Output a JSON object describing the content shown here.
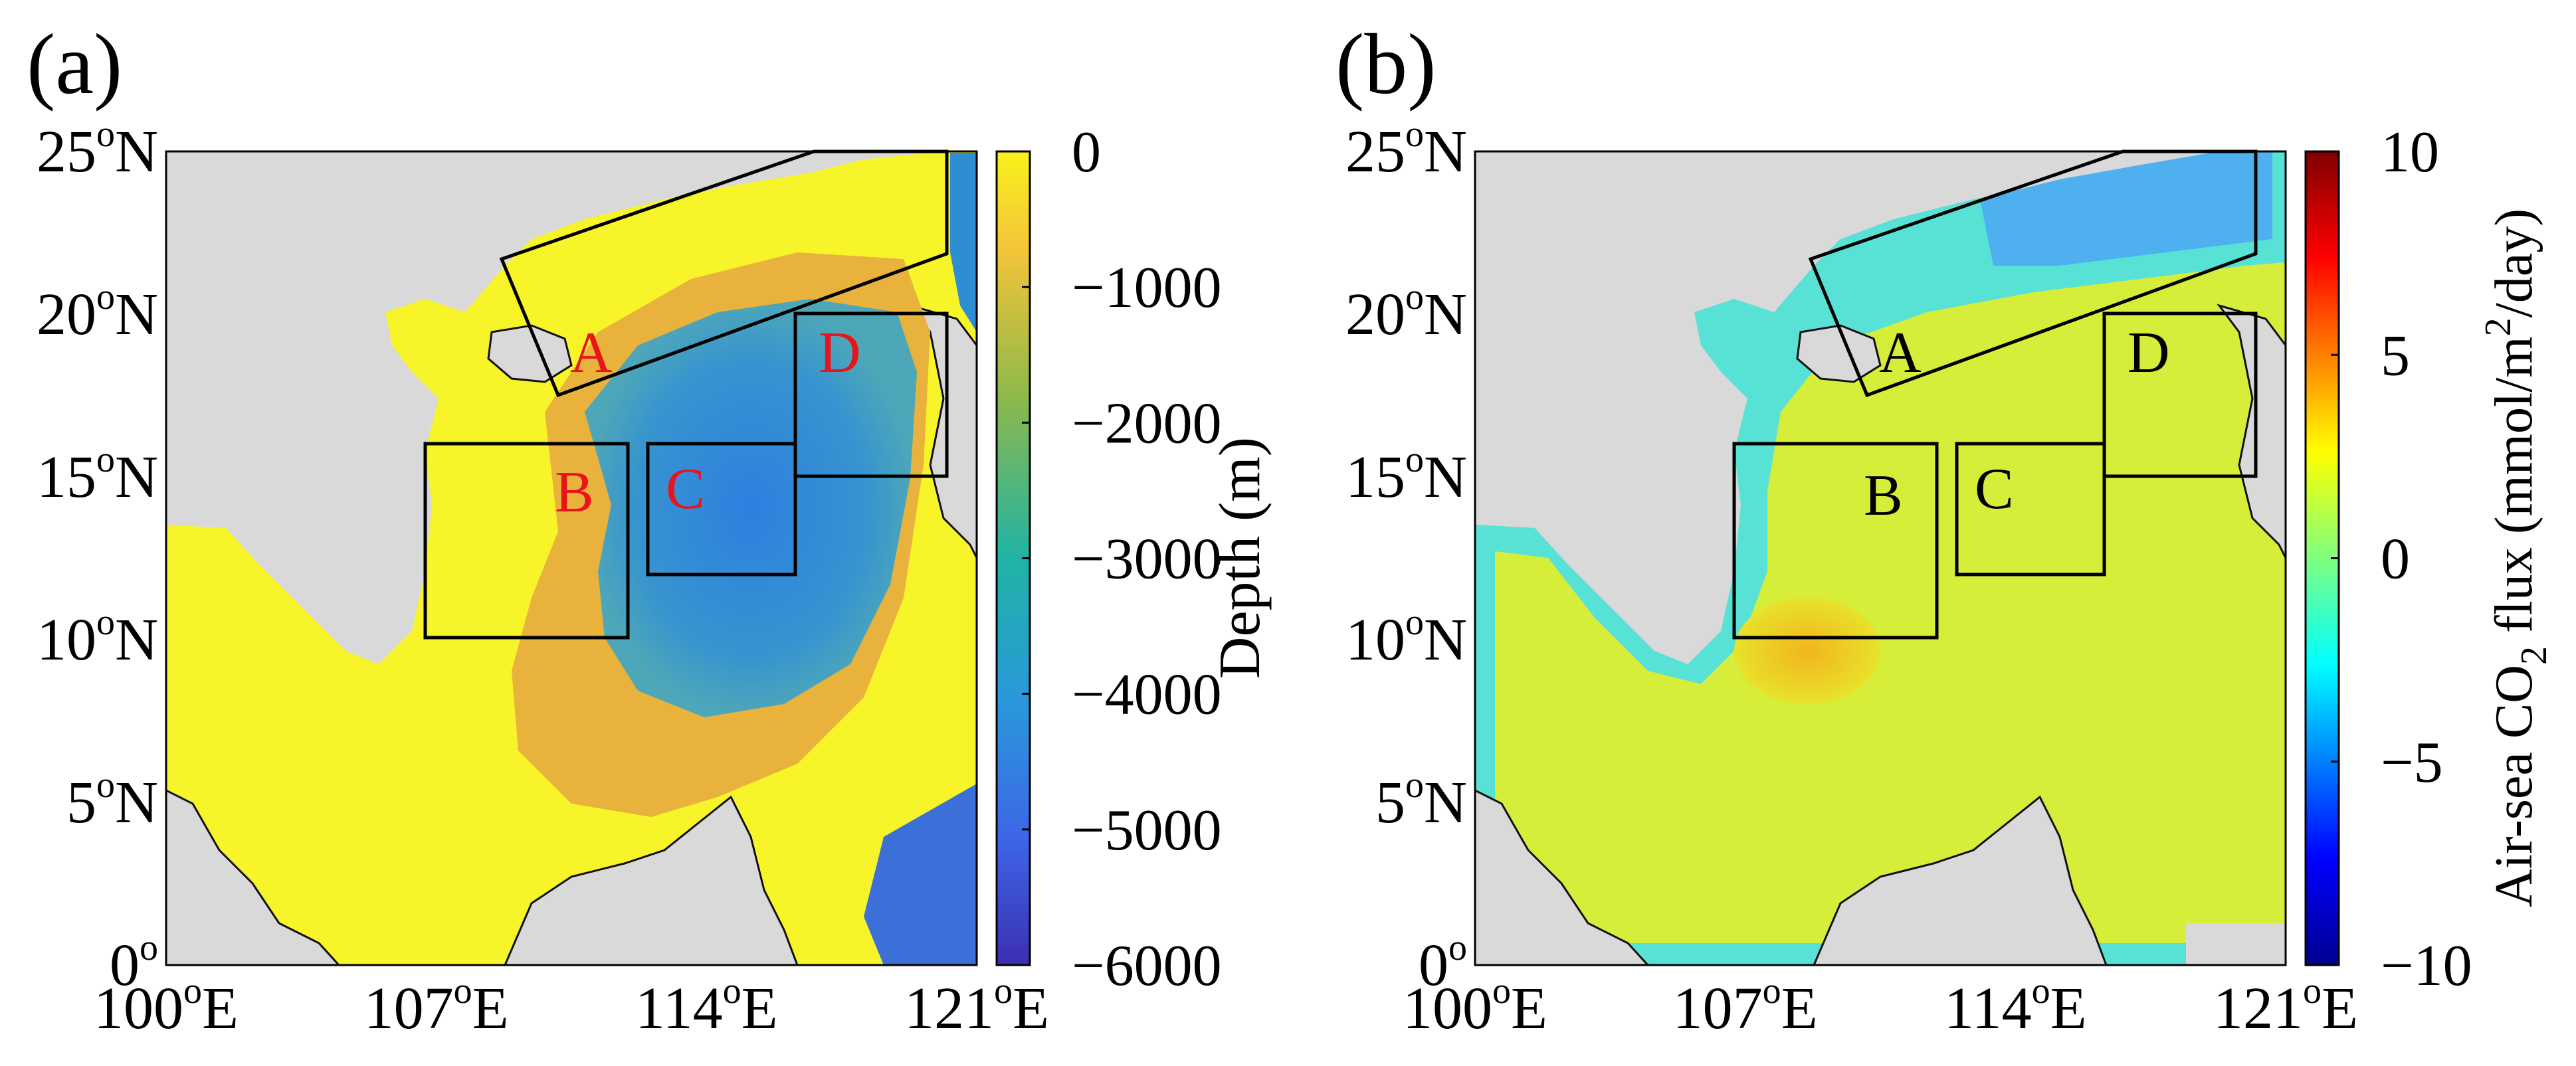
{
  "panels": [
    {
      "id": "a",
      "label": "(a)",
      "x_ticks": [
        {
          "deg": "100",
          "sup": "o",
          "dir": "E"
        },
        {
          "deg": "107",
          "sup": "o",
          "dir": "E"
        },
        {
          "deg": "114",
          "sup": "o",
          "dir": "E"
        },
        {
          "deg": "121",
          "sup": "o",
          "dir": "E"
        }
      ],
      "y_ticks": [
        {
          "deg": "25",
          "sup": "o",
          "dir": "N"
        },
        {
          "deg": "20",
          "sup": "o",
          "dir": "N"
        },
        {
          "deg": "15",
          "sup": "o",
          "dir": "N"
        },
        {
          "deg": "10",
          "sup": "o",
          "dir": "N"
        },
        {
          "deg": "5",
          "sup": "o",
          "dir": "N"
        },
        {
          "deg": "0",
          "sup": "o",
          "dir": ""
        }
      ],
      "regions": [
        "A",
        "B",
        "C",
        "D"
      ],
      "region_label_color": "#e8141a",
      "colorbar": {
        "ticks": [
          "0",
          "−1000",
          "−2000",
          "−3000",
          "−4000",
          "−5000",
          "−6000"
        ],
        "label": "Depth (m)",
        "range": [
          -6000,
          0
        ]
      }
    },
    {
      "id": "b",
      "label": "(b)",
      "x_ticks": [
        {
          "deg": "100",
          "sup": "o",
          "dir": "E"
        },
        {
          "deg": "107",
          "sup": "o",
          "dir": "E"
        },
        {
          "deg": "114",
          "sup": "o",
          "dir": "E"
        },
        {
          "deg": "121",
          "sup": "o",
          "dir": "E"
        }
      ],
      "y_ticks": [
        {
          "deg": "25",
          "sup": "o",
          "dir": "N"
        },
        {
          "deg": "20",
          "sup": "o",
          "dir": "N"
        },
        {
          "deg": "15",
          "sup": "o",
          "dir": "N"
        },
        {
          "deg": "10",
          "sup": "o",
          "dir": "N"
        },
        {
          "deg": "5",
          "sup": "o",
          "dir": "N"
        },
        {
          "deg": "0",
          "sup": "o",
          "dir": ""
        }
      ],
      "regions": [
        "A",
        "B",
        "C",
        "D"
      ],
      "region_label_color": "#000000",
      "colorbar": {
        "ticks": [
          "10",
          "5",
          "0",
          "−5",
          "−10"
        ],
        "label_prefix": "Air-sea CO",
        "label_sub": "2",
        "label_mid": " flux (mmol/m",
        "label_sup": "2",
        "label_suffix": "/day)",
        "range": [
          -10,
          10
        ]
      }
    }
  ],
  "colors": {
    "land": "#d9d9d9",
    "depth_shallow": "#f8f42a",
    "depth_mid": "#e8b23c",
    "depth_deep": "#3d83d6",
    "depth_abyss": "#3b35c4",
    "flux_main": "#d6ed3a",
    "flux_coast": "#58e2d6",
    "flux_cold": "#4fb0f0"
  }
}
